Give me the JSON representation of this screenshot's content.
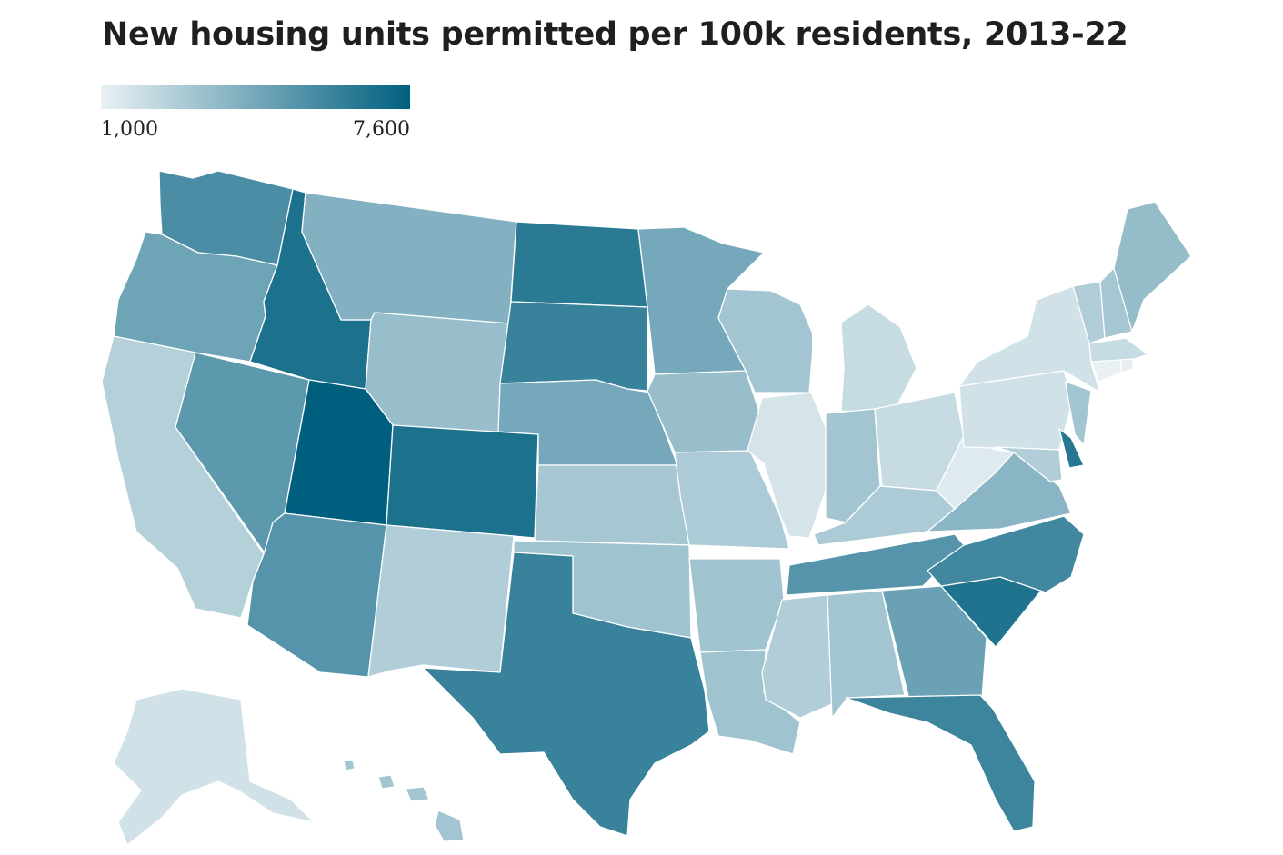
{
  "title": "New housing units permitted per 100k residents, 2013-22",
  "legend": {
    "min_label": "1,000",
    "max_label": "7,600",
    "min_value": 1000,
    "max_value": 7600,
    "color_low": "#e9f1f4",
    "color_high": "#005f7f"
  },
  "states": [
    {
      "id": "WA",
      "name": "Washington",
      "value": 5500
    },
    {
      "id": "OR",
      "name": "Oregon",
      "value": 4500
    },
    {
      "id": "CA",
      "name": "California",
      "value": 2500
    },
    {
      "id": "NV",
      "name": "Nevada",
      "value": 5000
    },
    {
      "id": "ID",
      "name": "Idaho",
      "value": 6800
    },
    {
      "id": "MT",
      "name": "Montana",
      "value": 3900
    },
    {
      "id": "WY",
      "name": "Wyoming",
      "value": 3300
    },
    {
      "id": "UT",
      "name": "Utah",
      "value": 7600
    },
    {
      "id": "AZ",
      "name": "Arizona",
      "value": 5200
    },
    {
      "id": "CO",
      "name": "Colorado",
      "value": 6800
    },
    {
      "id": "NM",
      "name": "New Mexico",
      "value": 2600
    },
    {
      "id": "ND",
      "name": "North Dakota",
      "value": 6400
    },
    {
      "id": "SD",
      "name": "South Dakota",
      "value": 6000
    },
    {
      "id": "NE",
      "name": "Nebraska",
      "value": 4300
    },
    {
      "id": "KS",
      "name": "Kansas",
      "value": 2900
    },
    {
      "id": "OK",
      "name": "Oklahoma",
      "value": 3100
    },
    {
      "id": "TX",
      "name": "Texas",
      "value": 6000
    },
    {
      "id": "MN",
      "name": "Minnesota",
      "value": 4300
    },
    {
      "id": "IA",
      "name": "Iowa",
      "value": 3300
    },
    {
      "id": "MO",
      "name": "Missouri",
      "value": 2700
    },
    {
      "id": "AR",
      "name": "Arkansas",
      "value": 3100
    },
    {
      "id": "LA",
      "name": "Louisiana",
      "value": 3100
    },
    {
      "id": "WI",
      "name": "Wisconsin",
      "value": 3000
    },
    {
      "id": "IL",
      "name": "Illinois",
      "value": 1600
    },
    {
      "id": "MI",
      "name": "Michigan",
      "value": 2000
    },
    {
      "id": "IN",
      "name": "Indiana",
      "value": 3000
    },
    {
      "id": "OH",
      "name": "Ohio",
      "value": 2000
    },
    {
      "id": "KY",
      "name": "Kentucky",
      "value": 2700
    },
    {
      "id": "TN",
      "name": "Tennessee",
      "value": 5200
    },
    {
      "id": "MS",
      "name": "Mississippi",
      "value": 2600
    },
    {
      "id": "AL",
      "name": "Alabama",
      "value": 3000
    },
    {
      "id": "GA",
      "name": "Georgia",
      "value": 4600
    },
    {
      "id": "FL",
      "name": "Florida",
      "value": 5900
    },
    {
      "id": "SC",
      "name": "South Carolina",
      "value": 6700
    },
    {
      "id": "NC",
      "name": "North Carolina",
      "value": 5800
    },
    {
      "id": "VA",
      "name": "Virginia",
      "value": 3700
    },
    {
      "id": "WV",
      "name": "West Virginia",
      "value": 1300
    },
    {
      "id": "PA",
      "name": "Pennsylvania",
      "value": 1700
    },
    {
      "id": "NY",
      "name": "New York",
      "value": 1700
    },
    {
      "id": "MD",
      "name": "Maryland",
      "value": 2600
    },
    {
      "id": "DE",
      "name": "Delaware",
      "value": 6500
    },
    {
      "id": "NJ",
      "name": "New Jersey",
      "value": 3000
    },
    {
      "id": "CT",
      "name": "Connecticut",
      "value": 1000
    },
    {
      "id": "RI",
      "name": "Rhode Island",
      "value": 1100
    },
    {
      "id": "MA",
      "name": "Massachusetts",
      "value": 2000
    },
    {
      "id": "VT",
      "name": "Vermont",
      "value": 2600
    },
    {
      "id": "NH",
      "name": "New Hampshire",
      "value": 2900
    },
    {
      "id": "ME",
      "name": "Maine",
      "value": 3400
    },
    {
      "id": "AK",
      "name": "Alaska",
      "value": 1700
    },
    {
      "id": "HI",
      "name": "Hawaii",
      "value": 3000
    }
  ]
}
